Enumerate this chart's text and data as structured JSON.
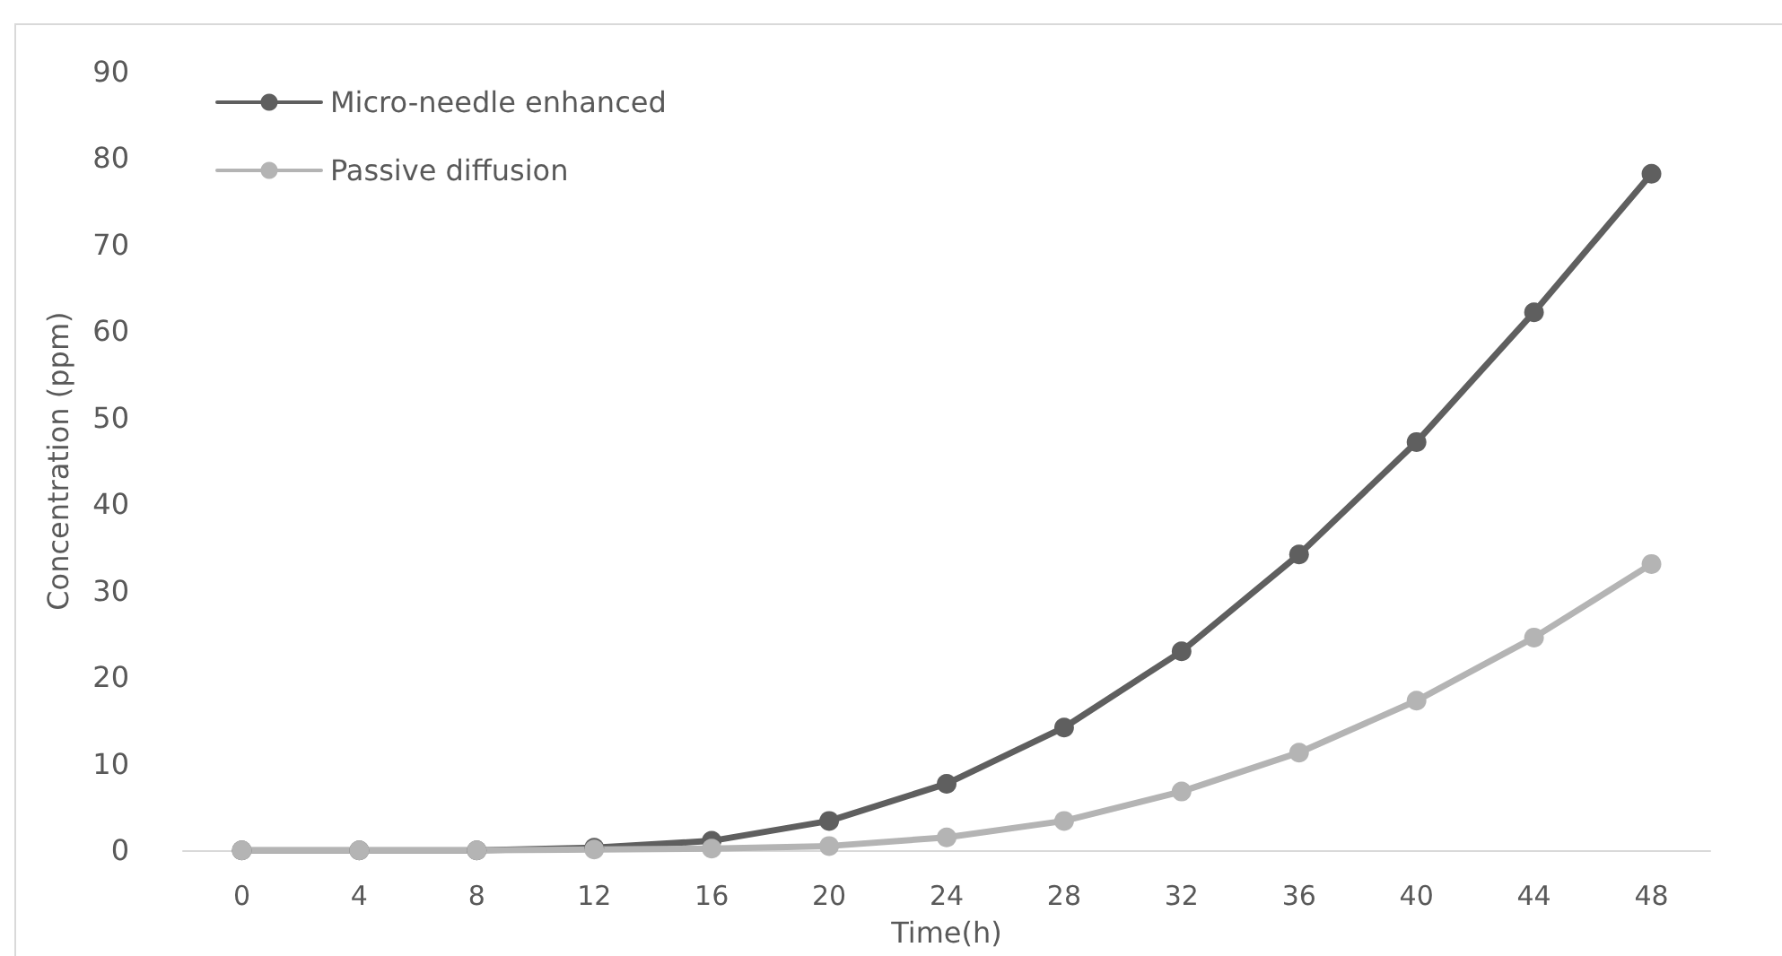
{
  "chart_data": {
    "type": "line",
    "xlabel": "Time(h)",
    "ylabel": "Concentration (ppm)",
    "x": [
      0,
      4,
      8,
      12,
      16,
      20,
      24,
      28,
      32,
      36,
      40,
      44,
      48
    ],
    "xlim": [
      -2,
      50
    ],
    "xticks": [
      0,
      4,
      8,
      12,
      16,
      20,
      24,
      28,
      32,
      36,
      40,
      44,
      48
    ],
    "series": [
      {
        "name": "Micro-needle enhanced",
        "color": "#5f5f5f",
        "values": [
          0,
          0,
          0,
          0.3,
          1.1,
          3.4,
          7.7,
          14.2,
          23.0,
          34.2,
          47.2,
          62.2,
          78.2
        ]
      },
      {
        "name": "Passive diffusion",
        "color": "#b4b4b4",
        "values": [
          0,
          0,
          0,
          0.1,
          0.2,
          0.5,
          1.5,
          3.4,
          6.8,
          11.3,
          17.3,
          24.6,
          33.1
        ]
      }
    ],
    "ylim": [
      0,
      90
    ],
    "yticks": [
      0,
      10,
      20,
      30,
      40,
      50,
      60,
      70,
      80,
      90
    ],
    "grid": false,
    "legend": "top left",
    "marker": "circle",
    "line_style": "solid"
  }
}
